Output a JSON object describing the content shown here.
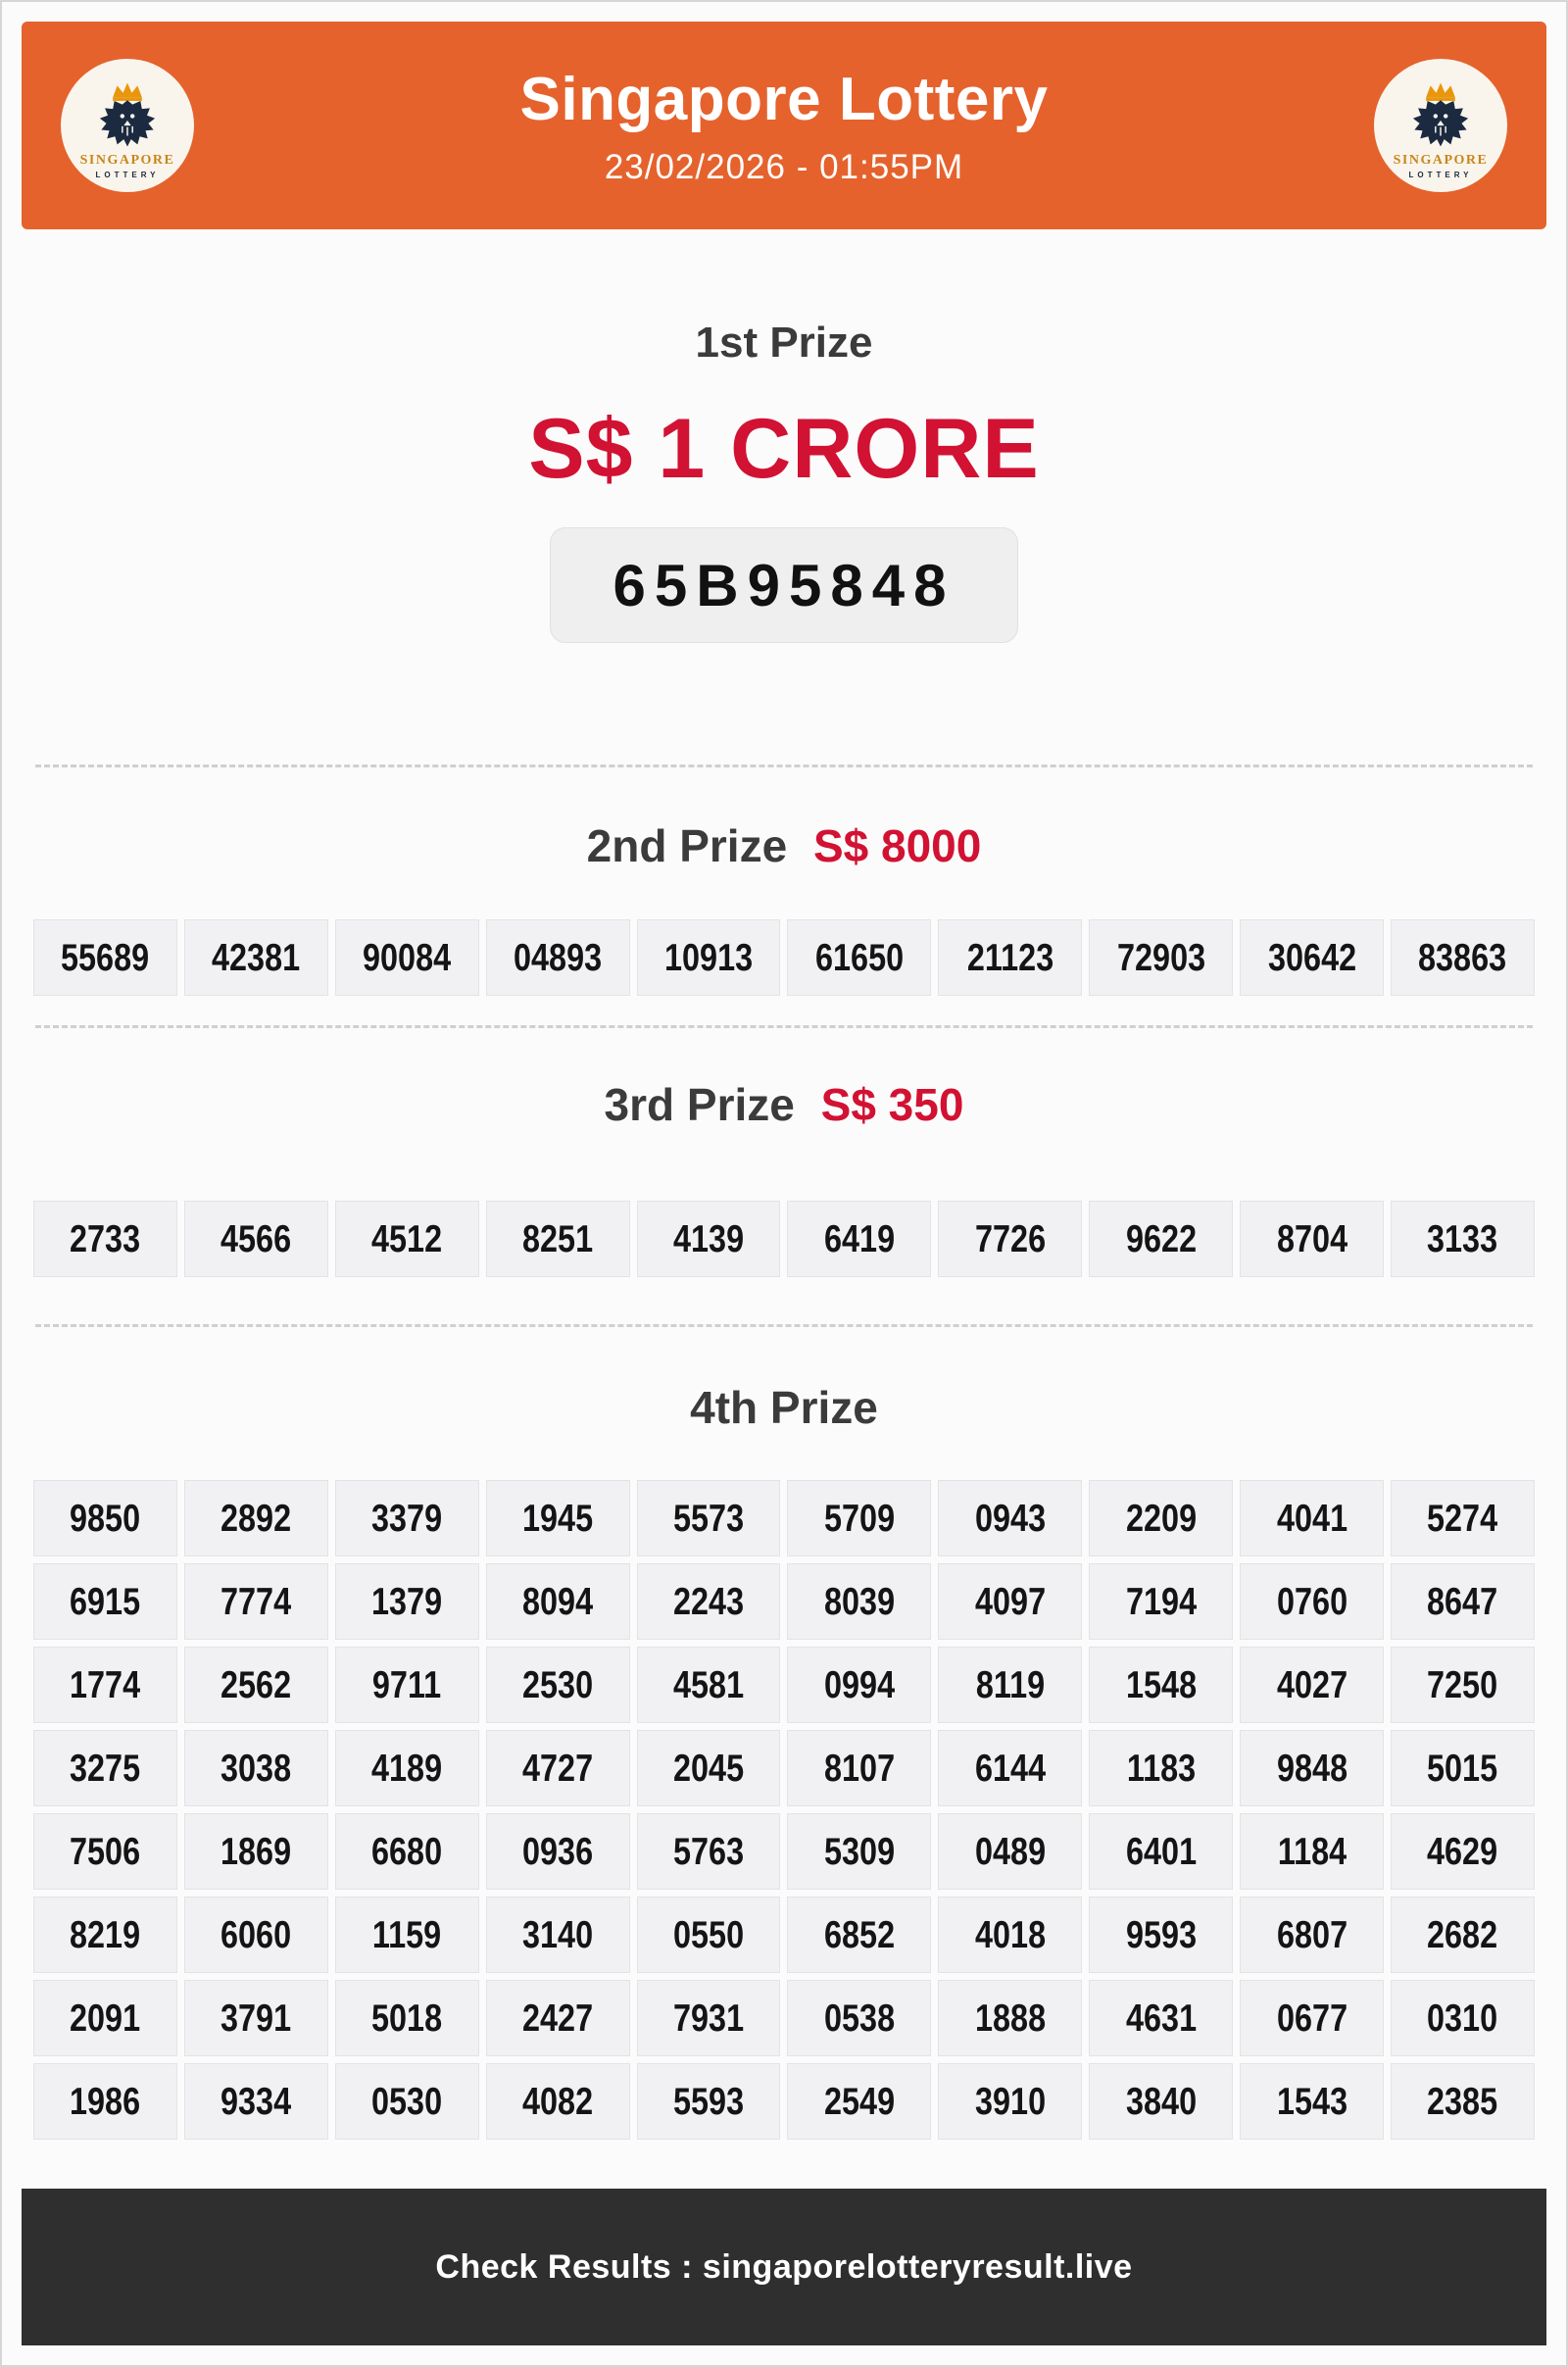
{
  "header": {
    "title": "Singapore Lottery",
    "datetime": "23/02/2026 - 01:55PM",
    "bg_color": "#E5622D",
    "logo": {
      "text_top": "SINGAPORE",
      "text_bottom": "LOTTERY",
      "crown_icon": "crown-icon",
      "lion_icon": "lion-icon"
    }
  },
  "prizes": {
    "first": {
      "label": "1st Prize",
      "amount": "S$ 1 CRORE",
      "winning_number": "65B95848"
    },
    "second": {
      "label": "2nd Prize",
      "amount": "S$ 8000",
      "numbers": [
        "55689",
        "42381",
        "90084",
        "04893",
        "10913",
        "61650",
        "21123",
        "72903",
        "30642",
        "83863"
      ]
    },
    "third": {
      "label": "3rd Prize",
      "amount": "S$ 350",
      "numbers": [
        "2733",
        "4566",
        "4512",
        "8251",
        "4139",
        "6419",
        "7726",
        "9622",
        "8704",
        "3133"
      ]
    },
    "fourth": {
      "label": "4th Prize",
      "rows": [
        [
          "9850",
          "2892",
          "3379",
          "1945",
          "5573",
          "5709",
          "0943",
          "2209",
          "4041",
          "5274"
        ],
        [
          "6915",
          "7774",
          "1379",
          "8094",
          "2243",
          "8039",
          "4097",
          "7194",
          "0760",
          "8647"
        ],
        [
          "1774",
          "2562",
          "9711",
          "2530",
          "4581",
          "0994",
          "8119",
          "1548",
          "4027",
          "7250"
        ],
        [
          "3275",
          "3038",
          "4189",
          "4727",
          "2045",
          "8107",
          "6144",
          "1183",
          "9848",
          "5015"
        ],
        [
          "7506",
          "1869",
          "6680",
          "0936",
          "5763",
          "5309",
          "0489",
          "6401",
          "1184",
          "4629"
        ],
        [
          "8219",
          "6060",
          "1159",
          "3140",
          "0550",
          "6852",
          "4018",
          "9593",
          "6807",
          "2682"
        ],
        [
          "2091",
          "3791",
          "5018",
          "2427",
          "7931",
          "0538",
          "1888",
          "4631",
          "0677",
          "0310"
        ],
        [
          "1986",
          "9334",
          "0530",
          "4082",
          "5593",
          "2549",
          "3910",
          "3840",
          "1543",
          "2385"
        ]
      ]
    }
  },
  "footer": {
    "text": "Check Results : singaporelotteryresult.live"
  },
  "colors": {
    "accent_red": "#D21233",
    "header_orange": "#E5622D",
    "dark_text": "#3B3B3B",
    "footer_bg": "#2F2F2F",
    "cell_bg": "#F1F1F4",
    "logo_gold": "#C8861B",
    "logo_navy": "#1B2A41"
  }
}
